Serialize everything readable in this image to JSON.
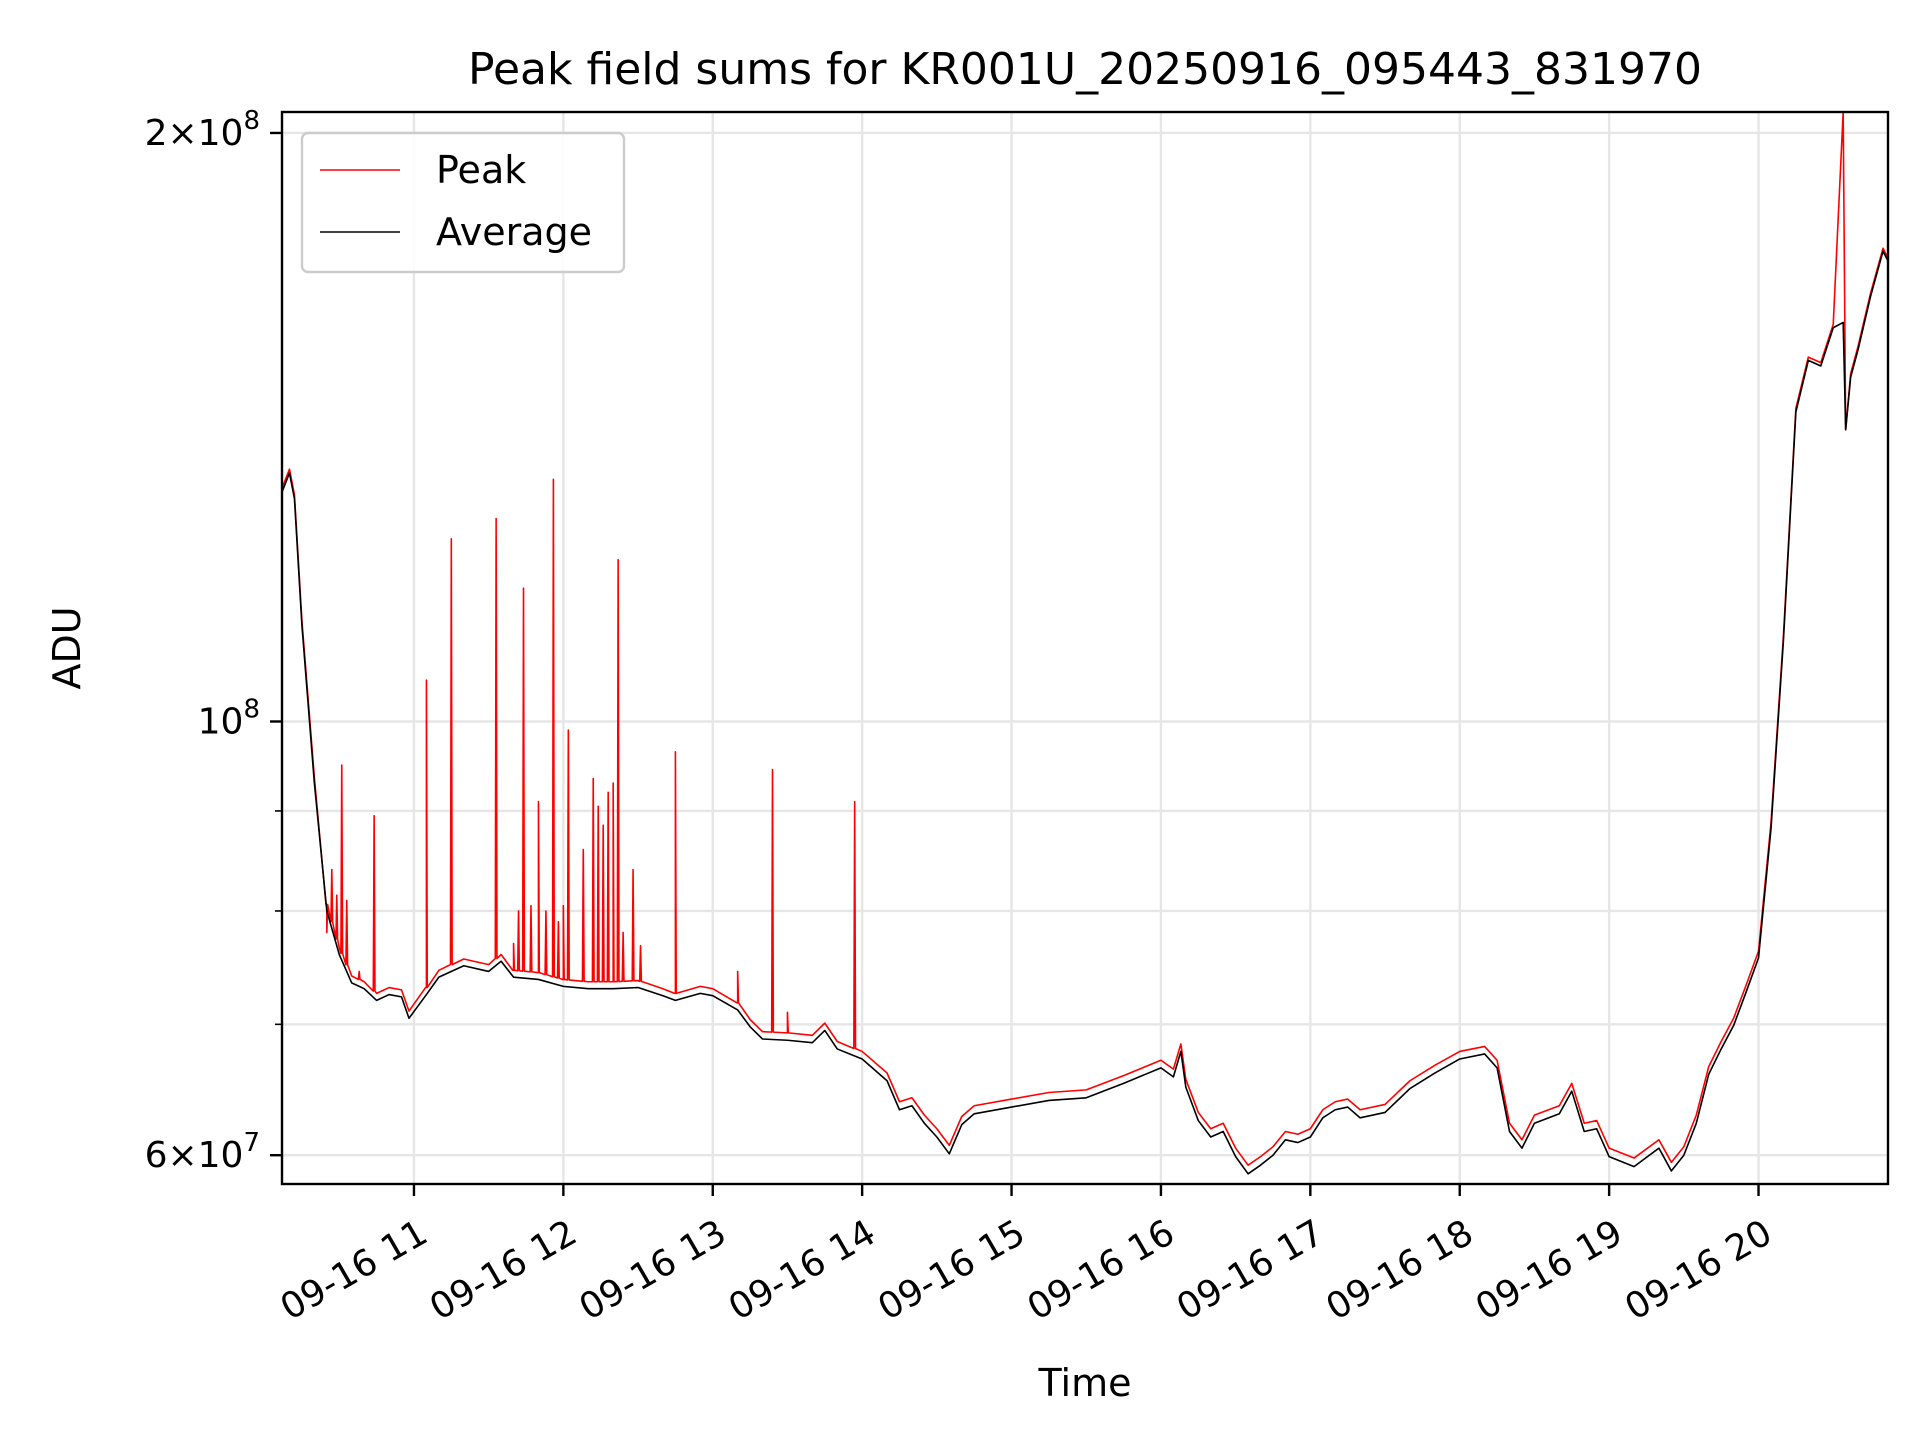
{
  "chart_data": {
    "type": "line",
    "title": "Peak field sums for KR001U_20250916_095443_831970",
    "xlabel": "Time",
    "ylabel": "ADU",
    "yscale": "log",
    "ylim": [
      58000000,
      205000000
    ],
    "xlim": [
      "2025-09-16T10:07",
      "2025-09-16T20:52"
    ],
    "grid": true,
    "legend_position": "upper-left",
    "x_ticks": [
      {
        "t": "2025-09-16T11:00",
        "label": "09-16 11"
      },
      {
        "t": "2025-09-16T12:00",
        "label": "09-16 12"
      },
      {
        "t": "2025-09-16T13:00",
        "label": "09-16 13"
      },
      {
        "t": "2025-09-16T14:00",
        "label": "09-16 14"
      },
      {
        "t": "2025-09-16T15:00",
        "label": "09-16 15"
      },
      {
        "t": "2025-09-16T16:00",
        "label": "09-16 16"
      },
      {
        "t": "2025-09-16T17:00",
        "label": "09-16 17"
      },
      {
        "t": "2025-09-16T18:00",
        "label": "09-16 18"
      },
      {
        "t": "2025-09-16T19:00",
        "label": "09-16 19"
      },
      {
        "t": "2025-09-16T20:00",
        "label": "09-16 20"
      }
    ],
    "y_ticks": [
      {
        "value": 60000000,
        "base": "6",
        "exp": "7",
        "mult": true
      },
      {
        "value": 100000000,
        "base": "10",
        "exp": "8",
        "mult": false
      },
      {
        "value": 200000000,
        "base": "2",
        "exp": "8",
        "mult": true
      }
    ],
    "y_minor_ticks": [
      70000000,
      80000000,
      90000000
    ],
    "series": [
      {
        "name": "Average",
        "color": "#000000",
        "points": [
          [
            "2025-09-16T10:07",
            131000000
          ],
          [
            "2025-09-16T10:10",
            134000000
          ],
          [
            "2025-09-16T10:12",
            130000000
          ],
          [
            "2025-09-16T10:15",
            112000000
          ],
          [
            "2025-09-16T10:20",
            93000000
          ],
          [
            "2025-09-16T10:25",
            80000000
          ],
          [
            "2025-09-16T10:30",
            76000000
          ],
          [
            "2025-09-16T10:35",
            73500000
          ],
          [
            "2025-09-16T10:40",
            73000000
          ],
          [
            "2025-09-16T10:45",
            72000000
          ],
          [
            "2025-09-16T10:50",
            72500000
          ],
          [
            "2025-09-16T10:55",
            72300000
          ],
          [
            "2025-09-16T10:58",
            70500000
          ],
          [
            "2025-09-16T11:05",
            72500000
          ],
          [
            "2025-09-16T11:10",
            74000000
          ],
          [
            "2025-09-16T11:20",
            75000000
          ],
          [
            "2025-09-16T11:30",
            74500000
          ],
          [
            "2025-09-16T11:35",
            75400000
          ],
          [
            "2025-09-16T11:40",
            74000000
          ],
          [
            "2025-09-16T11:50",
            73800000
          ],
          [
            "2025-09-16T12:00",
            73200000
          ],
          [
            "2025-09-16T12:10",
            73000000
          ],
          [
            "2025-09-16T12:20",
            73000000
          ],
          [
            "2025-09-16T12:30",
            73100000
          ],
          [
            "2025-09-16T12:40",
            72400000
          ],
          [
            "2025-09-16T12:45",
            72000000
          ],
          [
            "2025-09-16T12:55",
            72600000
          ],
          [
            "2025-09-16T13:00",
            72400000
          ],
          [
            "2025-09-16T13:10",
            71200000
          ],
          [
            "2025-09-16T13:15",
            69800000
          ],
          [
            "2025-09-16T13:20",
            68800000
          ],
          [
            "2025-09-16T13:30",
            68700000
          ],
          [
            "2025-09-16T13:40",
            68500000
          ],
          [
            "2025-09-16T13:45",
            69500000
          ],
          [
            "2025-09-16T13:50",
            68000000
          ],
          [
            "2025-09-16T14:00",
            67200000
          ],
          [
            "2025-09-16T14:10",
            65500000
          ],
          [
            "2025-09-16T14:15",
            63300000
          ],
          [
            "2025-09-16T14:20",
            63600000
          ],
          [
            "2025-09-16T14:25",
            62300000
          ],
          [
            "2025-09-16T14:30",
            61300000
          ],
          [
            "2025-09-16T14:35",
            60100000
          ],
          [
            "2025-09-16T14:40",
            62200000
          ],
          [
            "2025-09-16T14:45",
            63000000
          ],
          [
            "2025-09-16T15:00",
            63500000
          ],
          [
            "2025-09-16T15:15",
            64000000
          ],
          [
            "2025-09-16T15:30",
            64200000
          ],
          [
            "2025-09-16T15:45",
            65300000
          ],
          [
            "2025-09-16T16:00",
            66500000
          ],
          [
            "2025-09-16T16:05",
            65800000
          ],
          [
            "2025-09-16T16:08",
            67800000
          ],
          [
            "2025-09-16T16:10",
            65000000
          ],
          [
            "2025-09-16T16:15",
            62500000
          ],
          [
            "2025-09-16T16:20",
            61300000
          ],
          [
            "2025-09-16T16:25",
            61700000
          ],
          [
            "2025-09-16T16:30",
            59900000
          ],
          [
            "2025-09-16T16:35",
            58700000
          ],
          [
            "2025-09-16T16:40",
            59300000
          ],
          [
            "2025-09-16T16:45",
            60000000
          ],
          [
            "2025-09-16T16:50",
            61100000
          ],
          [
            "2025-09-16T16:55",
            60900000
          ],
          [
            "2025-09-16T17:00",
            61300000
          ],
          [
            "2025-09-16T17:05",
            62700000
          ],
          [
            "2025-09-16T17:10",
            63300000
          ],
          [
            "2025-09-16T17:15",
            63500000
          ],
          [
            "2025-09-16T17:20",
            62700000
          ],
          [
            "2025-09-16T17:30",
            63100000
          ],
          [
            "2025-09-16T17:40",
            64900000
          ],
          [
            "2025-09-16T17:50",
            66100000
          ],
          [
            "2025-09-16T18:00",
            67200000
          ],
          [
            "2025-09-16T18:10",
            67600000
          ],
          [
            "2025-09-16T18:15",
            66500000
          ],
          [
            "2025-09-16T18:20",
            61700000
          ],
          [
            "2025-09-16T18:25",
            60500000
          ],
          [
            "2025-09-16T18:30",
            62300000
          ],
          [
            "2025-09-16T18:40",
            63000000
          ],
          [
            "2025-09-16T18:45",
            64700000
          ],
          [
            "2025-09-16T18:50",
            61700000
          ],
          [
            "2025-09-16T18:55",
            61900000
          ],
          [
            "2025-09-16T19:00",
            59900000
          ],
          [
            "2025-09-16T19:10",
            59200000
          ],
          [
            "2025-09-16T19:20",
            60500000
          ],
          [
            "2025-09-16T19:25",
            58900000
          ],
          [
            "2025-09-16T19:30",
            60000000
          ],
          [
            "2025-09-16T19:35",
            62300000
          ],
          [
            "2025-09-16T19:40",
            66000000
          ],
          [
            "2025-09-16T19:45",
            68000000
          ],
          [
            "2025-09-16T19:50",
            69900000
          ],
          [
            "2025-09-16T19:55",
            72700000
          ],
          [
            "2025-09-16T20:00",
            75700000
          ],
          [
            "2025-09-16T20:05",
            88100000
          ],
          [
            "2025-09-16T20:10",
            110000000
          ],
          [
            "2025-09-16T20:15",
            144000000
          ],
          [
            "2025-09-16T20:20",
            153000000
          ],
          [
            "2025-09-16T20:25",
            152000000
          ],
          [
            "2025-09-16T20:30",
            159000000
          ],
          [
            "2025-09-16T20:34",
            160000000
          ],
          [
            "2025-09-16T20:35",
            141000000
          ],
          [
            "2025-09-16T20:37",
            150000000
          ],
          [
            "2025-09-16T20:40",
            155000000
          ],
          [
            "2025-09-16T20:45",
            165000000
          ],
          [
            "2025-09-16T20:50",
            174000000
          ],
          [
            "2025-09-16T20:52",
            172000000
          ]
        ]
      },
      {
        "name": "Peak",
        "color": "#ff0000",
        "offset": 600000,
        "spikes": [
          [
            "2025-09-16T10:25",
            78000000
          ],
          [
            "2025-09-16T10:27",
            84000000
          ],
          [
            "2025-09-16T10:29",
            81500000
          ],
          [
            "2025-09-16T10:31",
            95000000
          ],
          [
            "2025-09-16T10:33",
            81000000
          ],
          [
            "2025-09-16T10:38",
            74500000
          ],
          [
            "2025-09-16T10:44",
            89500000
          ],
          [
            "2025-09-16T11:05",
            105000000
          ],
          [
            "2025-09-16T11:15",
            124000000
          ],
          [
            "2025-09-16T11:33",
            127000000
          ],
          [
            "2025-09-16T11:40",
            77000000
          ],
          [
            "2025-09-16T11:42",
            80000000
          ],
          [
            "2025-09-16T11:44",
            117000000
          ],
          [
            "2025-09-16T11:47",
            80500000
          ],
          [
            "2025-09-16T11:50",
            91000000
          ],
          [
            "2025-09-16T11:53",
            80000000
          ],
          [
            "2025-09-16T11:56",
            133000000
          ],
          [
            "2025-09-16T11:58",
            79000000
          ],
          [
            "2025-09-16T12:00",
            80500000
          ],
          [
            "2025-09-16T12:02",
            99000000
          ],
          [
            "2025-09-16T12:08",
            86000000
          ],
          [
            "2025-09-16T12:12",
            93500000
          ],
          [
            "2025-09-16T12:14",
            90500000
          ],
          [
            "2025-09-16T12:16",
            88500000
          ],
          [
            "2025-09-16T12:18",
            92000000
          ],
          [
            "2025-09-16T12:20",
            93000000
          ],
          [
            "2025-09-16T12:22",
            121000000
          ],
          [
            "2025-09-16T12:24",
            78000000
          ],
          [
            "2025-09-16T12:28",
            84000000
          ],
          [
            "2025-09-16T12:31",
            76800000
          ],
          [
            "2025-09-16T12:45",
            96500000
          ],
          [
            "2025-09-16T13:10",
            74500000
          ],
          [
            "2025-09-16T13:24",
            94500000
          ],
          [
            "2025-09-16T13:30",
            71000000
          ],
          [
            "2025-09-16T13:57",
            91000000
          ]
        ],
        "overrides": [
          [
            "2025-09-16T20:34",
            205000000
          ],
          [
            "2025-09-16T20:35",
            141000000
          ]
        ]
      }
    ]
  }
}
